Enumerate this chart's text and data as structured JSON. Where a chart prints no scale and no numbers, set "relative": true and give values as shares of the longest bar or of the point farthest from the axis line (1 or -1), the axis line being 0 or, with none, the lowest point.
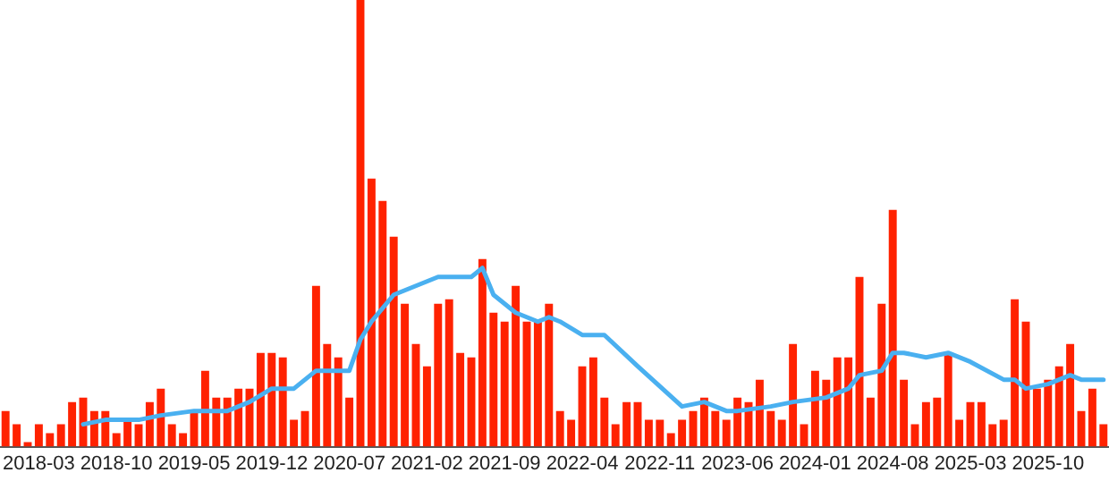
{
  "chart_data": {
    "type": "bar",
    "relative": true,
    "legend": false,
    "grid": false,
    "marker": "none",
    "categories": [
      null,
      null,
      null,
      "2018-03",
      null,
      null,
      null,
      null,
      null,
      null,
      "2018-10",
      null,
      null,
      null,
      null,
      null,
      null,
      "2019-05",
      null,
      null,
      null,
      null,
      null,
      null,
      "2019-12",
      null,
      null,
      null,
      null,
      null,
      null,
      "2020-07",
      null,
      null,
      null,
      null,
      null,
      null,
      "2021-02",
      null,
      null,
      null,
      null,
      null,
      null,
      "2021-09",
      null,
      null,
      null,
      null,
      null,
      null,
      "2022-04",
      null,
      null,
      null,
      null,
      null,
      null,
      "2022-11",
      null,
      null,
      null,
      null,
      null,
      null,
      "2023-06",
      null,
      null,
      null,
      null,
      null,
      null,
      "2024-01",
      null,
      null,
      null,
      null,
      null,
      null,
      "2024-08",
      null,
      null,
      null,
      null,
      null,
      null,
      "2025-03",
      null,
      null,
      null,
      null,
      null,
      null,
      "2025-10",
      null,
      null,
      null,
      null,
      null
    ],
    "series": [
      {
        "color": "#ff2200",
        "values": [
          0.08,
          0.05,
          0.01,
          0.05,
          0.03,
          0.05,
          0.1,
          0.11,
          0.08,
          0.08,
          0.03,
          0.06,
          0.05,
          0.1,
          0.13,
          0.05,
          0.03,
          0.08,
          0.17,
          0.11,
          0.11,
          0.13,
          0.13,
          0.21,
          0.21,
          0.2,
          0.06,
          0.08,
          0.36,
          0.23,
          0.2,
          0.11,
          1,
          0.6,
          0.55,
          0.47,
          0.32,
          0.23,
          0.18,
          0.32,
          0.33,
          0.21,
          0.2,
          0.42,
          0.3,
          0.28,
          0.36,
          0.28,
          0.28,
          0.32,
          0.08,
          0.06,
          0.18,
          0.2,
          0.11,
          0.05,
          0.1,
          0.1,
          0.06,
          0.06,
          0.03,
          0.06,
          0.08,
          0.11,
          0.08,
          0.06,
          0.11,
          0.1,
          0.15,
          0.08,
          0.06,
          0.23,
          0.05,
          0.17,
          0.15,
          0.2,
          0.2,
          0.38,
          0.11,
          0.32,
          0.53,
          0.15,
          0.05,
          0.1,
          0.11,
          0.21,
          0.06,
          0.1,
          0.1,
          0.05,
          0.06,
          0.33,
          0.28,
          0.13,
          0.15,
          0.18,
          0.23,
          0.08,
          0.13,
          0.05
        ]
      },
      {
        "type": "line",
        "color": "#4ab0f0",
        "values": [
          null,
          null,
          null,
          null,
          null,
          null,
          null,
          0.05,
          null,
          0.06,
          null,
          null,
          0.06,
          null,
          0.07,
          null,
          null,
          0.08,
          null,
          null,
          0.08,
          null,
          0.1,
          null,
          0.13,
          null,
          0.13,
          null,
          0.17,
          null,
          0.17,
          0.17,
          0.24,
          0.28,
          null,
          0.34,
          null,
          0.36,
          null,
          0.38,
          null,
          0.38,
          0.38,
          0.4,
          0.34,
          null,
          0.3,
          null,
          0.28,
          0.29,
          0.28,
          null,
          0.25,
          null,
          0.25,
          null,
          null,
          0.18,
          null,
          null,
          null,
          0.09,
          null,
          0.1,
          null,
          0.08,
          0.08,
          null,
          null,
          0.09,
          null,
          0.1,
          null,
          null,
          0.11,
          null,
          0.13,
          0.16,
          null,
          0.17,
          0.21,
          0.21,
          null,
          0.2,
          null,
          0.21,
          null,
          0.19,
          null,
          null,
          0.15,
          0.15,
          0.13,
          null,
          0.14,
          null,
          0.16,
          0.15,
          0.15,
          0.15
        ]
      }
    ]
  }
}
